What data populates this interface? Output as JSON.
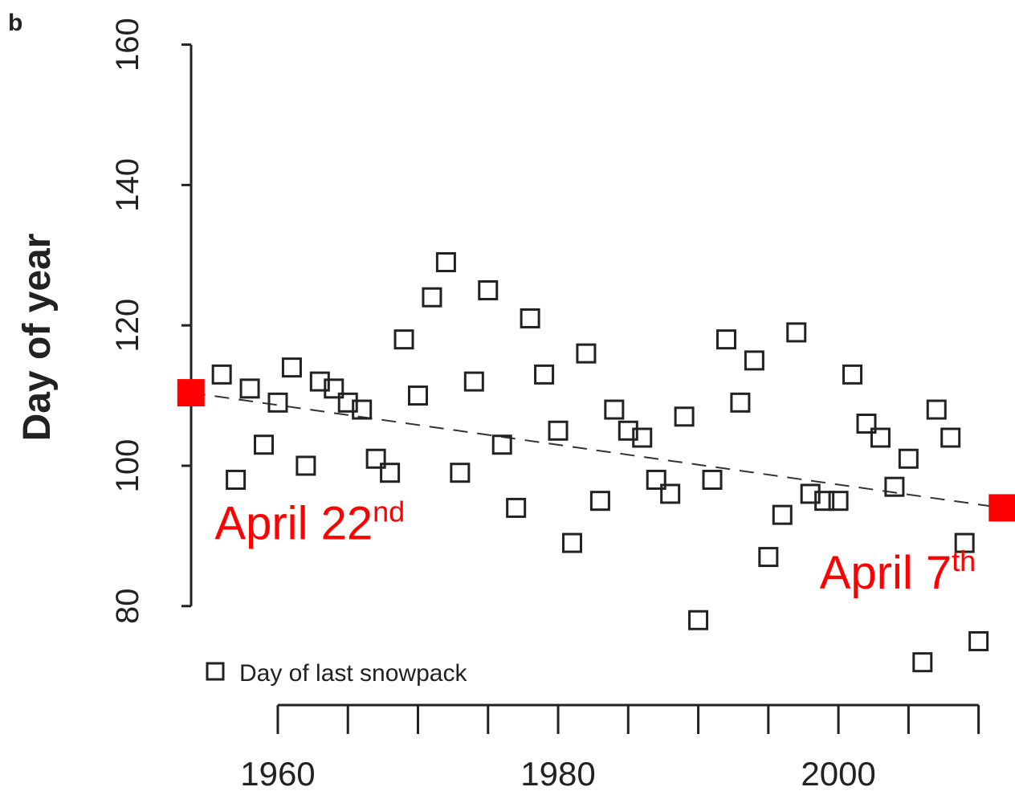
{
  "chart_data": {
    "type": "scatter",
    "panel_label": "b",
    "y_label": "Day of year",
    "xlim": [
      1953.47,
      2012.6
    ],
    "ylim": [
      65.9,
      166.36
    ],
    "xticks": [
      1960,
      1980,
      2000
    ],
    "xminorticks": [
      1965,
      1970,
      1975,
      1985,
      1990,
      1995,
      2005,
      2010
    ],
    "yticks": [
      80,
      100,
      120,
      140,
      160
    ],
    "series": [
      {
        "name": "Day of last snowpack",
        "color": "#222222",
        "x": [
          1956,
          1957,
          1958,
          1959,
          1960,
          1961,
          1962,
          1963,
          1964,
          1965,
          1966,
          1967,
          1968,
          1969,
          1970,
          1971,
          1972,
          1973,
          1974,
          1975,
          1976,
          1977,
          1978,
          1979,
          1980,
          1981,
          1982,
          1983,
          1984,
          1985,
          1986,
          1987,
          1988,
          1989,
          1990,
          1991,
          1992,
          1993,
          1994,
          1995,
          1996,
          1997,
          1998,
          1999,
          2000,
          2001,
          2002,
          2003,
          2004,
          2005,
          2006,
          2007,
          2008,
          2009,
          2010
        ],
        "values": [
          113,
          98,
          111,
          103,
          109,
          114,
          100,
          112,
          111,
          109,
          108,
          101,
          99,
          118,
          110,
          124,
          129,
          99,
          112,
          125,
          103,
          94,
          121,
          113,
          105,
          89,
          116,
          95,
          108,
          105,
          104,
          98,
          96,
          107,
          78,
          98,
          118,
          109,
          115,
          87,
          93,
          119,
          96,
          95,
          95,
          113,
          106,
          104,
          97,
          101,
          72,
          108,
          104,
          89,
          75
        ]
      }
    ],
    "trend": {
      "color": "#ff0000",
      "x": [
        1953.8,
        2011.7
      ],
      "values": [
        110.4,
        94
      ]
    },
    "annotations": [
      {
        "text": "April 22",
        "suffix": "nd",
        "x": 1955.5,
        "y": 89.5
      },
      {
        "text": "April 7",
        "suffix": "th",
        "x": 2009.8,
        "y": 82.5
      }
    ]
  }
}
